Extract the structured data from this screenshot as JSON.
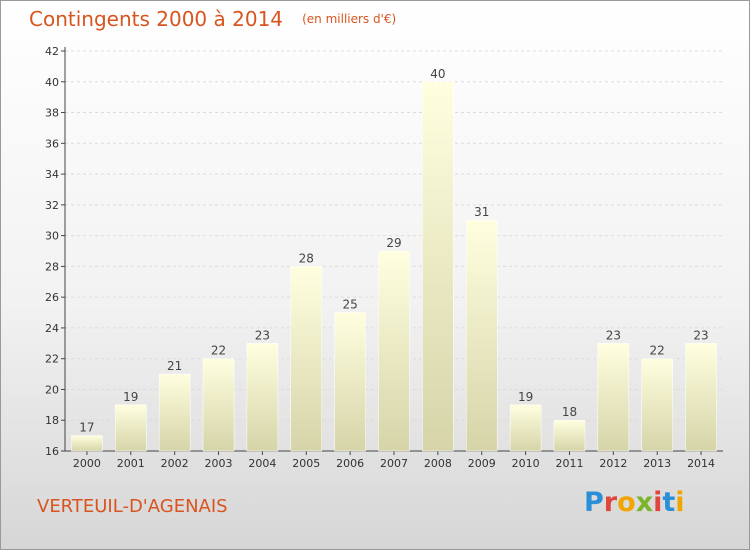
{
  "header": {
    "title": "Contingents 2000 à 2014",
    "unit": "(en milliers d'€)"
  },
  "footer": {
    "town": "VERTEUIL-D'AGENAIS",
    "logo_text": "Proxiti",
    "logo_colors": [
      "#2a8fd6",
      "#e0463c",
      "#f0a500",
      "#7ab52a",
      "#e0463c",
      "#2a8fd6",
      "#f0a500"
    ]
  },
  "chart_data": {
    "type": "bar",
    "title": "Contingents 2000 à 2014",
    "subtitle": "(en milliers d'€)",
    "categories": [
      "2000",
      "2001",
      "2002",
      "2003",
      "2004",
      "2005",
      "2006",
      "2007",
      "2008",
      "2009",
      "2010",
      "2011",
      "2012",
      "2013",
      "2014"
    ],
    "values": [
      17,
      19,
      21,
      22,
      23,
      28,
      25,
      29,
      40,
      31,
      19,
      18,
      23,
      22,
      23
    ],
    "ylim": [
      16,
      42
    ],
    "yticks": [
      16,
      18,
      20,
      22,
      24,
      26,
      28,
      30,
      32,
      34,
      36,
      38,
      40,
      42
    ],
    "grid": true,
    "bar_color_top": "#ffffe0",
    "bar_color_bottom": "#d6d4a8"
  }
}
